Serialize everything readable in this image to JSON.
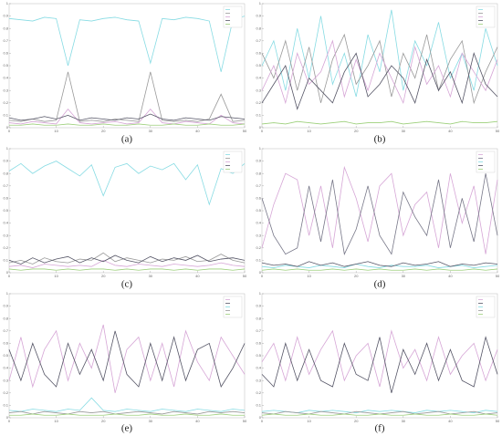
{
  "chart_data": [
    {
      "type": "line",
      "caption": "(a)",
      "legend": "upper right",
      "xlim": [
        0,
        50
      ],
      "xticks": [
        0,
        10,
        20,
        30,
        40,
        50
      ],
      "ylim": [
        0,
        1
      ],
      "yticks": [
        0,
        0.1,
        0.2,
        0.3,
        0.4,
        0.5,
        0.6,
        0.7,
        0.8,
        0.9,
        1
      ],
      "x": [
        0,
        2.5,
        5,
        7.5,
        10,
        12.5,
        15,
        17.5,
        20,
        22.5,
        25,
        27.5,
        30,
        32.5,
        35,
        37.5,
        40,
        42.5,
        45,
        47.5,
        50
      ],
      "series": [
        {
          "color": "#86dbe3",
          "values": [
            0.88,
            0.87,
            0.86,
            0.89,
            0.88,
            0.5,
            0.87,
            0.86,
            0.88,
            0.89,
            0.87,
            0.86,
            0.52,
            0.88,
            0.87,
            0.89,
            0.88,
            0.86,
            0.45,
            0.87,
            0.9
          ]
        },
        {
          "color": "#999999",
          "values": [
            0.06,
            0.05,
            0.07,
            0.05,
            0.06,
            0.45,
            0.05,
            0.06,
            0.05,
            0.07,
            0.06,
            0.05,
            0.45,
            0.06,
            0.05,
            0.06,
            0.05,
            0.07,
            0.27,
            0.05,
            0.06
          ]
        },
        {
          "color": "#d6a6d6",
          "values": [
            0.04,
            0.03,
            0.05,
            0.04,
            0.03,
            0.15,
            0.04,
            0.03,
            0.04,
            0.05,
            0.03,
            0.04,
            0.15,
            0.04,
            0.03,
            0.05,
            0.04,
            0.03,
            0.1,
            0.04,
            0.03
          ]
        },
        {
          "color": "#555566",
          "values": [
            0.08,
            0.06,
            0.07,
            0.09,
            0.07,
            0.1,
            0.06,
            0.08,
            0.07,
            0.06,
            0.08,
            0.07,
            0.11,
            0.07,
            0.06,
            0.08,
            0.07,
            0.06,
            0.09,
            0.08,
            0.07
          ]
        },
        {
          "color": "#9ccf7a",
          "values": [
            0.02,
            0.02,
            0.03,
            0.02,
            0.02,
            0.03,
            0.02,
            0.02,
            0.03,
            0.02,
            0.02,
            0.03,
            0.02,
            0.02,
            0.03,
            0.02,
            0.02,
            0.03,
            0.02,
            0.02,
            0.03
          ]
        }
      ]
    },
    {
      "type": "line",
      "caption": "(b)",
      "legend": "upper right",
      "xlim": [
        0,
        50
      ],
      "xticks": [
        0,
        10,
        20,
        30,
        40,
        50
      ],
      "ylim": [
        0,
        1
      ],
      "yticks": [
        0,
        0.1,
        0.2,
        0.3,
        0.4,
        0.5,
        0.6,
        0.7,
        0.8,
        0.9,
        1
      ],
      "x": [
        0,
        2.5,
        5,
        7.5,
        10,
        12.5,
        15,
        17.5,
        20,
        22.5,
        25,
        27.5,
        30,
        32.5,
        35,
        37.5,
        40,
        42.5,
        45,
        47.5,
        50
      ],
      "series": [
        {
          "color": "#86dbe3",
          "values": [
            0.5,
            0.7,
            0.3,
            0.8,
            0.4,
            0.9,
            0.35,
            0.6,
            0.25,
            0.75,
            0.45,
            0.95,
            0.3,
            0.7,
            0.5,
            0.85,
            0.4,
            0.6,
            0.3,
            0.8,
            0.5
          ]
        },
        {
          "color": "#999999",
          "values": [
            0.6,
            0.4,
            0.7,
            0.3,
            0.65,
            0.2,
            0.55,
            0.75,
            0.35,
            0.5,
            0.7,
            0.25,
            0.6,
            0.4,
            0.75,
            0.3,
            0.55,
            0.7,
            0.2,
            0.45,
            0.65
          ]
        },
        {
          "color": "#d6a6d6",
          "values": [
            0.3,
            0.5,
            0.2,
            0.6,
            0.35,
            0.45,
            0.7,
            0.25,
            0.55,
            0.3,
            0.6,
            0.4,
            0.2,
            0.65,
            0.35,
            0.5,
            0.25,
            0.6,
            0.45,
            0.3,
            0.55
          ]
        },
        {
          "color": "#555566",
          "values": [
            0.2,
            0.35,
            0.5,
            0.15,
            0.4,
            0.3,
            0.2,
            0.45,
            0.6,
            0.25,
            0.35,
            0.5,
            0.4,
            0.2,
            0.55,
            0.3,
            0.45,
            0.2,
            0.6,
            0.35,
            0.25
          ]
        },
        {
          "color": "#9ccf7a",
          "values": [
            0.03,
            0.04,
            0.03,
            0.05,
            0.04,
            0.03,
            0.04,
            0.05,
            0.03,
            0.04,
            0.04,
            0.05,
            0.03,
            0.04,
            0.05,
            0.04,
            0.03,
            0.05,
            0.04,
            0.04,
            0.05
          ]
        }
      ]
    },
    {
      "type": "line",
      "caption": "(c)",
      "legend": "upper right",
      "xlim": [
        0,
        50
      ],
      "xticks": [
        0,
        10,
        20,
        30,
        40,
        50
      ],
      "ylim": [
        0,
        1
      ],
      "yticks": [
        0,
        0.1,
        0.2,
        0.3,
        0.4,
        0.5,
        0.6,
        0.7,
        0.8,
        0.9,
        1
      ],
      "x": [
        0,
        2.5,
        5,
        7.5,
        10,
        12.5,
        15,
        17.5,
        20,
        22.5,
        25,
        27.5,
        30,
        32.5,
        35,
        37.5,
        40,
        42.5,
        45,
        47.5,
        50
      ],
      "series": [
        {
          "color": "#86dbe3",
          "values": [
            0.82,
            0.88,
            0.8,
            0.86,
            0.9,
            0.84,
            0.78,
            0.87,
            0.62,
            0.85,
            0.88,
            0.8,
            0.86,
            0.83,
            0.88,
            0.75,
            0.87,
            0.55,
            0.84,
            0.8,
            0.88
          ]
        },
        {
          "color": "#999999",
          "values": [
            0.08,
            0.1,
            0.07,
            0.12,
            0.09,
            0.08,
            0.11,
            0.1,
            0.16,
            0.09,
            0.12,
            0.1,
            0.08,
            0.11,
            0.1,
            0.13,
            0.09,
            0.1,
            0.15,
            0.1,
            0.08
          ]
        },
        {
          "color": "#d6a6d6",
          "values": [
            0.05,
            0.06,
            0.04,
            0.07,
            0.06,
            0.05,
            0.06,
            0.05,
            0.1,
            0.06,
            0.05,
            0.07,
            0.06,
            0.05,
            0.07,
            0.06,
            0.05,
            0.06,
            0.08,
            0.06,
            0.05
          ]
        },
        {
          "color": "#555566",
          "values": [
            0.1,
            0.07,
            0.12,
            0.08,
            0.11,
            0.13,
            0.08,
            0.12,
            0.09,
            0.14,
            0.1,
            0.08,
            0.13,
            0.09,
            0.12,
            0.1,
            0.14,
            0.09,
            0.11,
            0.12,
            0.1
          ]
        },
        {
          "color": "#9ccf7a",
          "values": [
            0.03,
            0.02,
            0.03,
            0.03,
            0.02,
            0.03,
            0.02,
            0.03,
            0.03,
            0.02,
            0.03,
            0.02,
            0.03,
            0.03,
            0.02,
            0.03,
            0.02,
            0.03,
            0.03,
            0.02,
            0.03
          ]
        }
      ]
    },
    {
      "type": "line",
      "caption": "(d)",
      "legend": "upper right",
      "xlim": [
        0,
        50
      ],
      "xticks": [
        0,
        10,
        20,
        30,
        40,
        50
      ],
      "ylim": [
        0,
        1
      ],
      "yticks": [
        0,
        0.1,
        0.2,
        0.3,
        0.4,
        0.5,
        0.6,
        0.7,
        0.8,
        0.9,
        1
      ],
      "x": [
        0,
        2.5,
        5,
        7.5,
        10,
        12.5,
        15,
        17.5,
        20,
        22.5,
        25,
        27.5,
        30,
        32.5,
        35,
        37.5,
        40,
        42.5,
        45,
        47.5,
        50
      ],
      "series": [
        {
          "color": "#d6a6d6",
          "values": [
            0.2,
            0.55,
            0.8,
            0.75,
            0.3,
            0.7,
            0.2,
            0.85,
            0.6,
            0.25,
            0.7,
            0.8,
            0.3,
            0.55,
            0.65,
            0.2,
            0.8,
            0.4,
            0.7,
            0.15,
            0.75
          ]
        },
        {
          "color": "#777788",
          "values": [
            0.6,
            0.3,
            0.15,
            0.2,
            0.7,
            0.25,
            0.75,
            0.15,
            0.35,
            0.7,
            0.3,
            0.15,
            0.65,
            0.45,
            0.3,
            0.75,
            0.2,
            0.6,
            0.25,
            0.8,
            0.3
          ]
        },
        {
          "color": "#86dbe3",
          "values": [
            0.05,
            0.04,
            0.06,
            0.05,
            0.04,
            0.06,
            0.05,
            0.04,
            0.07,
            0.05,
            0.04,
            0.06,
            0.05,
            0.05,
            0.06,
            0.04,
            0.05,
            0.06,
            0.04,
            0.05,
            0.06
          ]
        },
        {
          "color": "#555566",
          "values": [
            0.08,
            0.06,
            0.07,
            0.05,
            0.09,
            0.06,
            0.08,
            0.05,
            0.07,
            0.09,
            0.06,
            0.05,
            0.08,
            0.06,
            0.07,
            0.09,
            0.05,
            0.07,
            0.06,
            0.08,
            0.07
          ]
        },
        {
          "color": "#9ccf7a",
          "values": [
            0.02,
            0.03,
            0.02,
            0.03,
            0.02,
            0.02,
            0.03,
            0.02,
            0.03,
            0.02,
            0.03,
            0.02,
            0.02,
            0.03,
            0.02,
            0.03,
            0.02,
            0.02,
            0.03,
            0.02,
            0.03
          ]
        }
      ]
    },
    {
      "type": "line",
      "caption": "(e)",
      "legend": "upper right",
      "xlim": [
        0,
        50
      ],
      "xticks": [
        0,
        10,
        20,
        30,
        40,
        50
      ],
      "ylim": [
        0,
        1
      ],
      "yticks": [
        0,
        0.1,
        0.2,
        0.3,
        0.4,
        0.5,
        0.6,
        0.7,
        0.8,
        0.9,
        1
      ],
      "x": [
        0,
        2.5,
        5,
        7.5,
        10,
        12.5,
        15,
        17.5,
        20,
        22.5,
        25,
        27.5,
        30,
        32.5,
        35,
        37.5,
        40,
        42.5,
        45,
        47.5,
        50
      ],
      "series": [
        {
          "color": "#d6a6d6",
          "values": [
            0.3,
            0.65,
            0.25,
            0.55,
            0.7,
            0.3,
            0.6,
            0.4,
            0.75,
            0.2,
            0.55,
            0.65,
            0.3,
            0.6,
            0.25,
            0.7,
            0.45,
            0.3,
            0.65,
            0.5,
            0.35
          ]
        },
        {
          "color": "#555566",
          "values": [
            0.55,
            0.3,
            0.6,
            0.35,
            0.25,
            0.6,
            0.35,
            0.55,
            0.3,
            0.7,
            0.35,
            0.25,
            0.6,
            0.3,
            0.65,
            0.3,
            0.55,
            0.6,
            0.25,
            0.4,
            0.6
          ]
        },
        {
          "color": "#86dbe3",
          "values": [
            0.06,
            0.05,
            0.07,
            0.06,
            0.05,
            0.07,
            0.06,
            0.16,
            0.06,
            0.05,
            0.07,
            0.06,
            0.05,
            0.07,
            0.06,
            0.05,
            0.07,
            0.06,
            0.05,
            0.07,
            0.06
          ]
        },
        {
          "color": "#999999",
          "values": [
            0.04,
            0.05,
            0.03,
            0.05,
            0.04,
            0.03,
            0.05,
            0.04,
            0.05,
            0.03,
            0.04,
            0.05,
            0.04,
            0.03,
            0.05,
            0.04,
            0.03,
            0.05,
            0.04,
            0.05,
            0.04
          ]
        },
        {
          "color": "#9ccf7a",
          "values": [
            0.02,
            0.02,
            0.03,
            0.02,
            0.02,
            0.03,
            0.02,
            0.02,
            0.02,
            0.03,
            0.02,
            0.02,
            0.03,
            0.02,
            0.02,
            0.03,
            0.02,
            0.02,
            0.03,
            0.02,
            0.02
          ]
        }
      ]
    },
    {
      "type": "line",
      "caption": "(f)",
      "legend": "upper right",
      "xlim": [
        0,
        50
      ],
      "xticks": [
        0,
        10,
        20,
        30,
        40,
        50
      ],
      "ylim": [
        0,
        1
      ],
      "yticks": [
        0,
        0.1,
        0.2,
        0.3,
        0.4,
        0.5,
        0.6,
        0.7,
        0.8,
        0.9,
        1
      ],
      "x": [
        0,
        2.5,
        5,
        7.5,
        10,
        12.5,
        15,
        17.5,
        20,
        22.5,
        25,
        27.5,
        30,
        32.5,
        35,
        37.5,
        40,
        42.5,
        45,
        47.5,
        50
      ],
      "series": [
        {
          "color": "#d6a6d6",
          "values": [
            0.45,
            0.6,
            0.3,
            0.65,
            0.35,
            0.55,
            0.7,
            0.3,
            0.5,
            0.6,
            0.25,
            0.7,
            0.4,
            0.55,
            0.3,
            0.65,
            0.35,
            0.5,
            0.6,
            0.3,
            0.55
          ]
        },
        {
          "color": "#555566",
          "values": [
            0.35,
            0.25,
            0.6,
            0.3,
            0.55,
            0.3,
            0.25,
            0.6,
            0.35,
            0.3,
            0.65,
            0.2,
            0.55,
            0.35,
            0.6,
            0.3,
            0.55,
            0.3,
            0.25,
            0.65,
            0.35
          ]
        },
        {
          "color": "#86dbe3",
          "values": [
            0.05,
            0.06,
            0.05,
            0.04,
            0.06,
            0.05,
            0.06,
            0.05,
            0.04,
            0.06,
            0.05,
            0.06,
            0.05,
            0.04,
            0.06,
            0.05,
            0.06,
            0.05,
            0.04,
            0.06,
            0.05
          ]
        },
        {
          "color": "#999999",
          "values": [
            0.04,
            0.03,
            0.05,
            0.04,
            0.03,
            0.05,
            0.04,
            0.03,
            0.05,
            0.04,
            0.03,
            0.04,
            0.05,
            0.03,
            0.04,
            0.05,
            0.03,
            0.04,
            0.05,
            0.03,
            0.04
          ]
        },
        {
          "color": "#9ccf7a",
          "values": [
            0.02,
            0.03,
            0.02,
            0.02,
            0.03,
            0.02,
            0.02,
            0.03,
            0.02,
            0.02,
            0.03,
            0.02,
            0.02,
            0.03,
            0.02,
            0.02,
            0.03,
            0.02,
            0.02,
            0.03,
            0.02
          ]
        }
      ]
    }
  ]
}
